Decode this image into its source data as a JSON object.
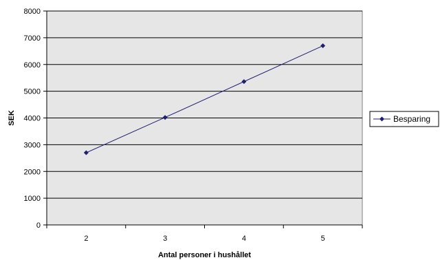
{
  "chart_data": {
    "type": "line",
    "title": "",
    "xlabel": "Antal personer i hushållet",
    "ylabel": "SEK",
    "categories": [
      "2",
      "3",
      "4",
      "5"
    ],
    "series": [
      {
        "name": "Besparing",
        "values": [
          2700,
          4020,
          5360,
          6700
        ]
      }
    ],
    "ylim": [
      0,
      8000
    ],
    "yticks": [
      0,
      1000,
      2000,
      3000,
      4000,
      5000,
      6000,
      7000,
      8000
    ],
    "grid": true,
    "legend": "right",
    "colors": {
      "line": "#1f1f6e",
      "plot_background": "#e6e6e6",
      "gridline": "#000000"
    }
  }
}
